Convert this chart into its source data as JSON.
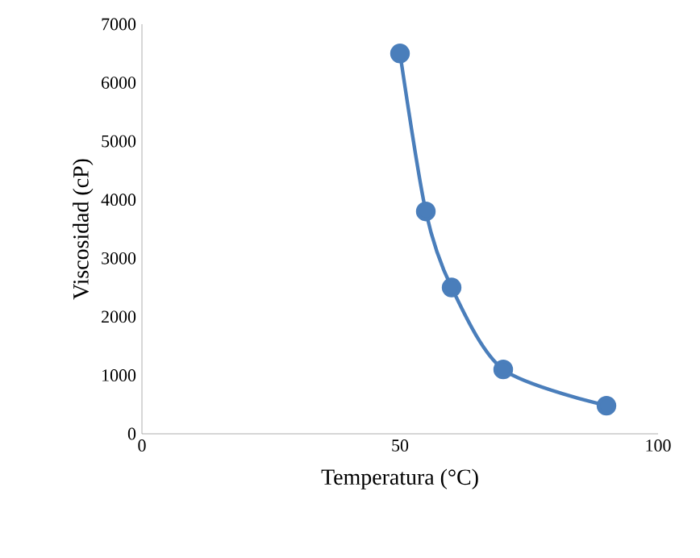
{
  "chart_data": {
    "type": "line",
    "xlabel": "Temperatura (°C)",
    "ylabel": "Viscosidad (cP)",
    "x": [
      50,
      55,
      60,
      70,
      90
    ],
    "series": [
      {
        "color": "#4a7ebb",
        "values": [
          6500,
          3800,
          2500,
          1100,
          480
        ]
      }
    ],
    "xlim": [
      0,
      100
    ],
    "xticks": [
      0,
      50,
      100
    ],
    "ylim": [
      0,
      7000
    ],
    "yticks": [
      0,
      1000,
      2000,
      3000,
      4000,
      5000,
      6000,
      7000
    ],
    "marker": "circle",
    "line_style": "solid",
    "grid": false
  }
}
